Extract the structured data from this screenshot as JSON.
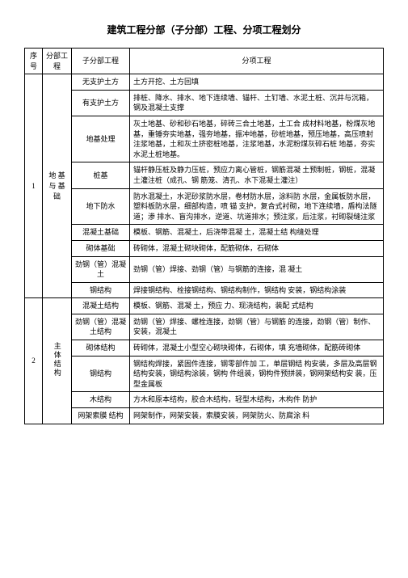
{
  "title": "建筑工程分部（子分部）工程、分项工程划分",
  "headers": {
    "idx": "序 号",
    "main": "分部工程",
    "sub": "子分部工程",
    "item": "分项工程"
  },
  "sections": [
    {
      "idx": "1",
      "main": "地 基 与 基础",
      "rows": [
        {
          "sub": "无支护土方",
          "item": "土方开挖、土方回填"
        },
        {
          "sub": "有支护土方",
          "item": "排桩、降水、排水、地下连续墙、锚杆、土钉墙、水泥土桩、沉井与沉箱，钢及混凝土支撑"
        },
        {
          "sub": "地基处理",
          "item": "灰土地基、砂和砂石地基，碎砖三合土地基，土工合 成材料地基，粉煤灰地基，重锤夯实地基，强夯地基，振冲地基，砂桩地基，预压地基，高压喷射注浆地基，土和灰土挤密桩地基，注浆地基，水泥粉煤灰碎石桩 地基，夯实水泥土桩地基。"
        },
        {
          "sub": "桩基",
          "item": "锚杆静压桩及静力压桩，预应力离心管桩，钢筋混凝 土预制桩，钢桩，混凝土灌注桩（成孔、钢 筋笼、清孔、水下混凝土灌注）"
        },
        {
          "sub": "地下防水",
          "item": "防水混凝土，水泥砂浆防水层，卷材防水层，涂料防 水层，金属板防水层，塑料板防水层，细部构造，喷 锚 支护，复合式衬砌，地下连续墙，盾构法隧道；渗 排水、盲沟排水，逆道、坑道排水；预注浆，后注浆，衬砌裂缝注浆"
        },
        {
          "sub": "混凝土基础",
          "item": "模板、钢筋、混凝土，后浇带混凝 土，混凝土结 构缝处理"
        },
        {
          "sub": "砌体基础",
          "item": "砖砌体，混凝土砌块砌体，配筋砌体，石砌体"
        },
        {
          "sub": "劲钢（管）混凝土",
          "item": "劲钢（管）焊接、劲钢（管）与钢筋的连接，混 凝土"
        },
        {
          "sub": "钢结构",
          "item": "焊接钢结构、栓接钢结构、钢结构制作，钢结构 安装，钢结构涂装"
        }
      ]
    },
    {
      "idx": "2",
      "main": "主体结构",
      "rows": [
        {
          "sub": "混凝土结构",
          "item": "模板、钢筋、混凝 土，预应 力、现浇结构，装配 式结构"
        },
        {
          "sub": "劲钢（管）混凝土结构",
          "item": "劲钢（管）焊接、螺栓连接，劲钢（管）与钢筋 的连接，劲钢（管）制作、安装，混凝土"
        },
        {
          "sub": "砌体结构",
          "item": "砖砌体，混凝土小型空心砌块砌体，石砌体，填 充墙砌体，配筋砖砌体"
        },
        {
          "sub": "钢结构",
          "item": "钢结构焊接，紧固件连接，钢零部件加 工，单层钢结 构安装，多层及高层钢结构安装，钢结构涂装，钢构 件组装，钢构件预拼装，钢网架结构安 装，压型金属板"
        },
        {
          "sub": "木结构",
          "item": "方木和原本结构，胶合木结构，轻型木结构，木构件 防护"
        },
        {
          "sub": "网架索膜 结构",
          "item": "网架制作，网架安装，索膜安装，网架防火、防腐涂 料"
        }
      ]
    }
  ]
}
